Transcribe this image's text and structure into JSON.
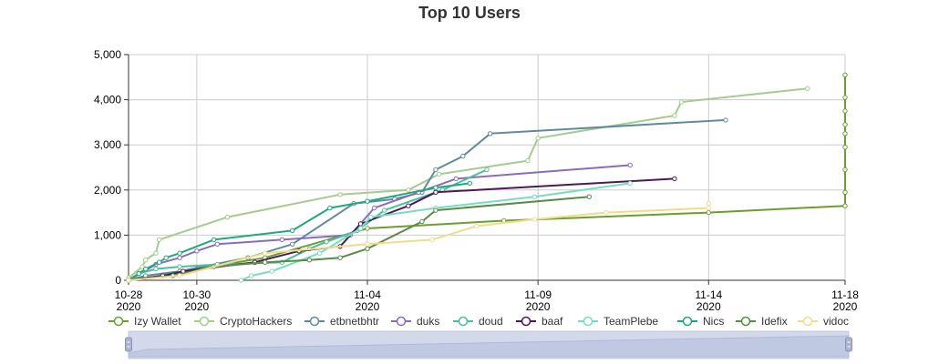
{
  "chart_data": {
    "type": "line",
    "title": "Top 10 Users",
    "xlabel": "",
    "ylabel": "",
    "x_axis_type": "date",
    "xlim": [
      "2020-10-28",
      "2020-11-18"
    ],
    "ylim": [
      0,
      5000
    ],
    "y_ticks": [
      0,
      1000,
      2000,
      3000,
      4000,
      5000
    ],
    "y_tick_labels": [
      "0",
      "1,000",
      "2,000",
      "3,000",
      "4,000",
      "5,000"
    ],
    "x_ticks": [
      {
        "date": "2020-10-28",
        "line1": "10-28",
        "line2": "2020"
      },
      {
        "date": "2020-10-30",
        "line1": "10-30",
        "line2": "2020"
      },
      {
        "date": "2020-11-04",
        "line1": "11-04",
        "line2": "2020"
      },
      {
        "date": "2020-11-09",
        "line1": "11-09",
        "line2": "2020"
      },
      {
        "date": "2020-11-14",
        "line1": "11-14",
        "line2": "2020"
      },
      {
        "date": "2020-11-18",
        "line1": "11-18",
        "line2": "2020"
      }
    ],
    "grid": true,
    "legend_position": "bottom",
    "series": [
      {
        "name": "Izy Wallet",
        "color": "#6a9f2f",
        "points": [
          [
            "2020-10-28",
            0
          ],
          [
            "2020-10-29",
            100
          ],
          [
            "2020-10-30",
            250
          ],
          [
            "2020-11-01",
            500
          ],
          [
            "2020-11-04",
            1150
          ],
          [
            "2020-11-08",
            1320
          ],
          [
            "2020-11-14",
            1500
          ],
          [
            "2020-11-18",
            1650
          ],
          [
            "2020-11-18",
            1950
          ],
          [
            "2020-11-18",
            2450
          ],
          [
            "2020-11-18",
            2950
          ],
          [
            "2020-11-18",
            3250
          ],
          [
            "2020-11-18",
            3450
          ],
          [
            "2020-11-18",
            3750
          ],
          [
            "2020-11-18",
            4050
          ],
          [
            "2020-11-18",
            4550
          ]
        ]
      },
      {
        "name": "CryptoHackers",
        "color": "#a5cb8e",
        "points": [
          [
            "2020-10-28",
            50
          ],
          [
            "2020-10-28.4",
            300
          ],
          [
            "2020-10-28.5",
            450
          ],
          [
            "2020-10-28.8",
            600
          ],
          [
            "2020-10-28.9",
            900
          ],
          [
            "2020-10-30.9",
            1400
          ],
          [
            "2020-11-03.2",
            1900
          ],
          [
            "2020-11-05.2",
            2000
          ],
          [
            "2020-11-06.1",
            2350
          ],
          [
            "2020-11-08.7",
            2650
          ],
          [
            "2020-11-09",
            3150
          ],
          [
            "2020-11-13",
            3650
          ],
          [
            "2020-11-13.2",
            3950
          ],
          [
            "2020-11-16.9",
            4250
          ]
        ]
      },
      {
        "name": "etbnetbhtr",
        "color": "#5f8b9b",
        "points": [
          [
            "2020-10-28",
            0
          ],
          [
            "2020-10-28.5",
            100
          ],
          [
            "2020-10-29.5",
            200
          ],
          [
            "2020-10-31.5",
            500
          ],
          [
            "2020-11-01.8",
            800
          ],
          [
            "2020-11-03.6",
            1700
          ],
          [
            "2020-11-04.8",
            1800
          ],
          [
            "2020-11-05.6",
            1950
          ],
          [
            "2020-11-06",
            2450
          ],
          [
            "2020-11-06.8",
            2750
          ],
          [
            "2020-11-07.6",
            3250
          ],
          [
            "2020-11-14.5",
            3550
          ]
        ]
      },
      {
        "name": "duks",
        "color": "#8b6cb8",
        "points": [
          [
            "2020-10-28",
            0
          ],
          [
            "2020-10-28.8",
            350
          ],
          [
            "2020-10-29.5",
            500
          ],
          [
            "2020-10-30",
            650
          ],
          [
            "2020-10-30.6",
            800
          ],
          [
            "2020-11-01.5",
            900
          ],
          [
            "2020-11-03.5",
            1000
          ],
          [
            "2020-11-04.2",
            1600
          ],
          [
            "2020-11-05.5",
            1950
          ],
          [
            "2020-11-06.6",
            2250
          ],
          [
            "2020-11-11.7",
            2550
          ]
        ]
      },
      {
        "name": "doud",
        "color": "#4bbf9c",
        "points": [
          [
            "2020-10-28",
            0
          ],
          [
            "2020-10-28.3",
            150
          ],
          [
            "2020-10-28.8",
            250
          ],
          [
            "2020-10-29.5",
            300
          ],
          [
            "2020-10-30.6",
            350
          ],
          [
            "2020-11-01.5",
            400
          ],
          [
            "2020-11-02.3",
            700
          ],
          [
            "2020-11-02.8",
            850
          ],
          [
            "2020-11-03.7",
            1100
          ],
          [
            "2020-11-04.5",
            1550
          ],
          [
            "2020-11-06.2",
            2000
          ],
          [
            "2020-11-07.5",
            2450
          ]
        ]
      },
      {
        "name": "baaf",
        "color": "#4b1a55",
        "points": [
          [
            "2020-10-28",
            0
          ],
          [
            "2020-10-29",
            100
          ],
          [
            "2020-10-29.6",
            200
          ],
          [
            "2020-10-31.7",
            400
          ],
          [
            "2020-11-02",
            650
          ],
          [
            "2020-11-03.2",
            750
          ],
          [
            "2020-11-03.8",
            1250
          ],
          [
            "2020-11-05.2",
            1650
          ],
          [
            "2020-11-06",
            1950
          ],
          [
            "2020-11-13",
            2250
          ]
        ]
      },
      {
        "name": "TeamPlebe",
        "color": "#77ddc0",
        "points": [
          [
            "2020-10-31.3",
            0
          ],
          [
            "2020-10-31.6",
            100
          ],
          [
            "2020-10-32.2",
            200
          ],
          [
            "2020-11-02.6",
            600
          ],
          [
            "2020-11-03.8",
            1150
          ],
          [
            "2020-11-04.1",
            1400
          ],
          [
            "2020-11-06",
            1600
          ],
          [
            "2020-11-08.9",
            1850
          ],
          [
            "2020-11-11.7",
            2150
          ]
        ]
      },
      {
        "name": "Nics",
        "color": "#1fa87a",
        "points": [
          [
            "2020-10-28",
            0
          ],
          [
            "2020-10-28.3",
            150
          ],
          [
            "2020-10-28.5",
            250
          ],
          [
            "2020-10-28.9",
            400
          ],
          [
            "2020-10-29.1",
            500
          ],
          [
            "2020-10-29.5",
            600
          ],
          [
            "2020-10-30.5",
            900
          ],
          [
            "2020-11-01.8",
            1100
          ],
          [
            "2020-11-02.9",
            1600
          ],
          [
            "2020-11-04",
            1750
          ],
          [
            "2020-11-06",
            2050
          ],
          [
            "2020-11-07",
            2150
          ]
        ]
      },
      {
        "name": "Idefix",
        "color": "#5a8a45",
        "points": [
          [
            "2020-10-28",
            0
          ],
          [
            "2020-10-29.3",
            100
          ],
          [
            "2020-10-30.5",
            300
          ],
          [
            "2020-11-01",
            400
          ],
          [
            "2020-11-02.3",
            450
          ],
          [
            "2020-11-03.2",
            500
          ],
          [
            "2020-11-04",
            700
          ],
          [
            "2020-11-05.6",
            1300
          ],
          [
            "2020-11-06",
            1550
          ],
          [
            "2020-11-10.5",
            1850
          ]
        ]
      },
      {
        "name": "vidoc",
        "color": "#f0dc8c",
        "points": [
          [
            "2020-10-28",
            0
          ],
          [
            "2020-10-29.5",
            100
          ],
          [
            "2020-11-01",
            600
          ],
          [
            "2020-11-04",
            800
          ],
          [
            "2020-11-05.9",
            900
          ],
          [
            "2020-11-07.2",
            1200
          ],
          [
            "2020-11-08.9",
            1350
          ],
          [
            "2020-11-11",
            1500
          ],
          [
            "2020-11-14",
            1600
          ],
          [
            "2020-11-14",
            1700
          ]
        ]
      }
    ]
  }
}
